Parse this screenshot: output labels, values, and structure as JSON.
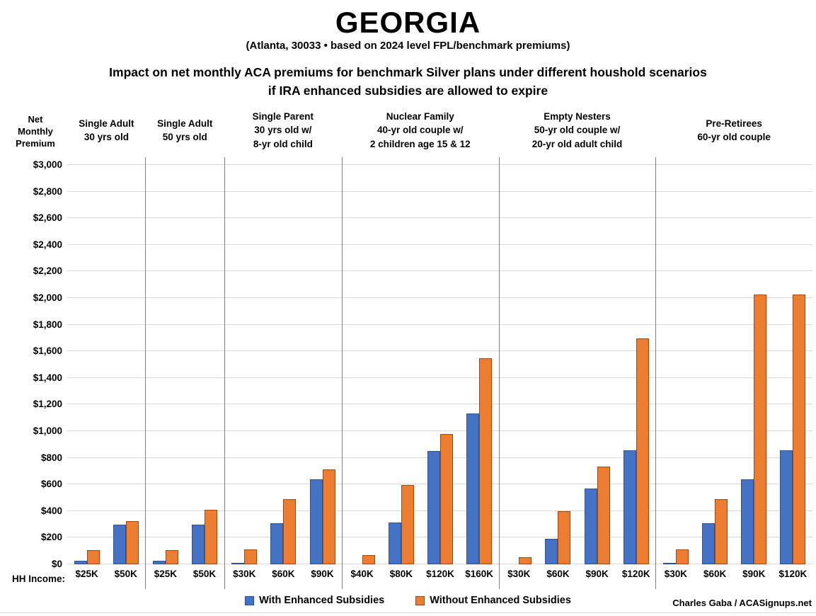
{
  "header": {
    "title": "GEORGIA",
    "subtitle": "(Atlanta, 30033 • based on 2024 level FPL/benchmark premiums)",
    "heading_line1": "Impact on net monthly ACA premiums for benchmark Silver plans under different houshold scenarios",
    "heading_line2": "if IRA enhanced subsidies are allowed to expire"
  },
  "axes": {
    "y_title_lines": [
      "Net",
      "Monthly",
      "Premium"
    ],
    "x_title": "HH Income:"
  },
  "legend": {
    "items": [
      {
        "name": "with-enhanced-subsidies",
        "label": "With Enhanced Subsidies",
        "color": "#4472C4",
        "border": "#2F528F"
      },
      {
        "name": "without-enhanced-subsidies",
        "label": "Without Enhanced Subsidies",
        "color": "#ED7D31",
        "border": "#9E480E"
      }
    ]
  },
  "credit": "Charles Gaba / ACASignups.net",
  "colors": {
    "with_fill": "#4472C4",
    "with_border": "#2F528F",
    "without_fill": "#ED7D31",
    "without_border": "#9E480E",
    "gridline": "#D9D9D9",
    "separator": "#7F7F7F",
    "text": "#000000",
    "background": "#FFFFFF"
  },
  "chart_data": {
    "type": "bar",
    "title": "GEORGIA — Impact on net monthly ACA premiums for benchmark Silver plans under different houshold scenarios if IRA enhanced subsidies are allowed to expire",
    "subtitle": "(Atlanta, 30033 • based on 2024 level FPL/benchmark premiums)",
    "ylabel": "Net Monthly Premium",
    "xlabel": "HH Income",
    "ylim": [
      0,
      3000
    ],
    "ytick_step": 200,
    "grid": true,
    "legend_position": "bottom",
    "series_names": [
      "With Enhanced Subsidies",
      "Without Enhanced Subsidies"
    ],
    "groups": [
      {
        "header_lines": [
          "Single Adult",
          "30 yrs old"
        ],
        "categories": [
          "$25K",
          "$50K"
        ],
        "series": [
          {
            "name": "With Enhanced Subsidies",
            "values": [
              20,
              295
            ]
          },
          {
            "name": "Without Enhanced Subsidies",
            "values": [
              100,
              320
            ]
          }
        ]
      },
      {
        "header_lines": [
          "Single Adult",
          "50 yrs old"
        ],
        "categories": [
          "$25K",
          "$50K"
        ],
        "series": [
          {
            "name": "With Enhanced Subsidies",
            "values": [
              20,
              295
            ]
          },
          {
            "name": "Without Enhanced Subsidies",
            "values": [
              100,
              405
            ]
          }
        ]
      },
      {
        "header_lines": [
          "Single Parent",
          "30 yrs old w/",
          "8-yr old child"
        ],
        "categories": [
          "$30K",
          "$60K",
          "$90K"
        ],
        "series": [
          {
            "name": "With Enhanced Subsidies",
            "values": [
              5,
              305,
              635
            ]
          },
          {
            "name": "Without Enhanced Subsidies",
            "values": [
              105,
              485,
              705
            ]
          }
        ]
      },
      {
        "header_lines": [
          "Nuclear Family",
          "40-yr old couple w/",
          "2 children age 15 & 12"
        ],
        "categories": [
          "$40K",
          "$80K",
          "$120K",
          "$160K"
        ],
        "series": [
          {
            "name": "With Enhanced Subsidies",
            "values": [
              0,
              310,
              845,
              1130
            ]
          },
          {
            "name": "Without Enhanced Subsidies",
            "values": [
              65,
              590,
              975,
              1545
            ]
          }
        ]
      },
      {
        "header_lines": [
          "Empty Nesters",
          "50-yr old couple w/",
          "20-yr old adult child"
        ],
        "categories": [
          "$30K",
          "$60K",
          "$90K",
          "$120K"
        ],
        "series": [
          {
            "name": "With Enhanced Subsidies",
            "values": [
              0,
              185,
              565,
              850
            ]
          },
          {
            "name": "Without Enhanced Subsidies",
            "values": [
              50,
              395,
              730,
              1690
            ]
          }
        ]
      },
      {
        "header_lines": [
          "Pre-Retirees",
          "60-yr old couple"
        ],
        "categories": [
          "$30K",
          "$60K",
          "$90K",
          "$120K"
        ],
        "series": [
          {
            "name": "With Enhanced Subsidies",
            "values": [
              5,
              305,
              635,
              850
            ]
          },
          {
            "name": "Without Enhanced Subsidies",
            "values": [
              105,
              485,
              2020,
              2020
            ]
          }
        ]
      }
    ]
  }
}
